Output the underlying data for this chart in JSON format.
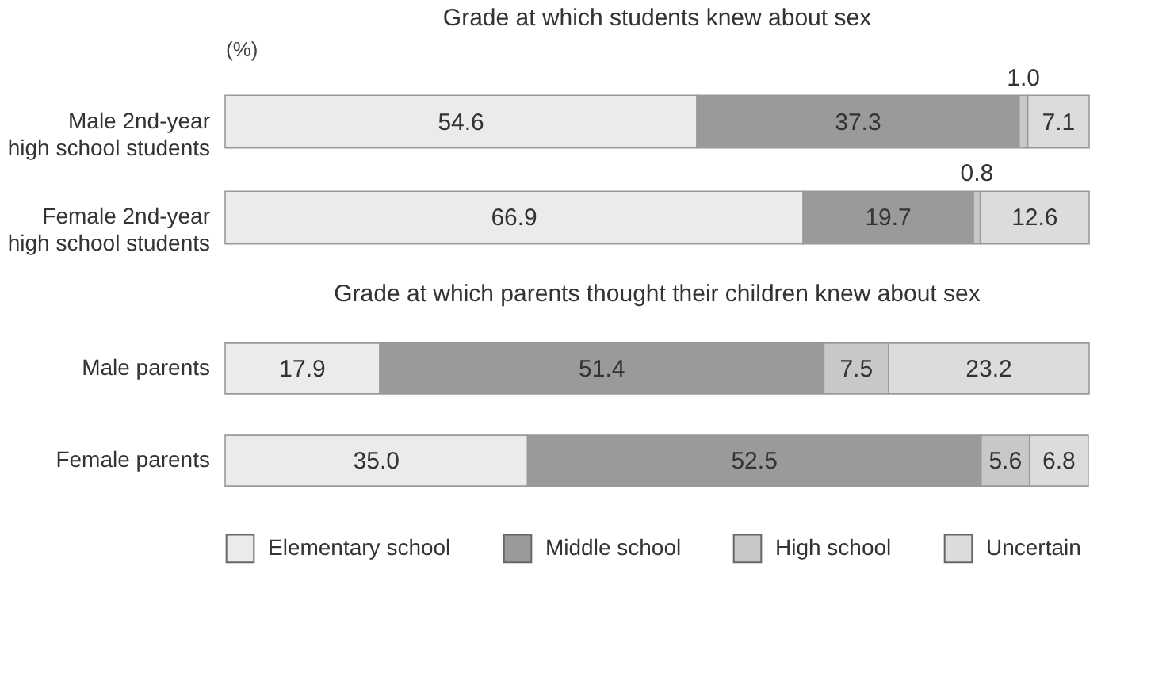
{
  "chart_data": [
    {
      "type": "bar",
      "orientation": "horizontal",
      "stacked": true,
      "title": "Grade at which students knew about sex",
      "xlabel": "(%)",
      "xlim": [
        0,
        100
      ],
      "legend": false,
      "categories": [
        "Male 2nd-year high school students",
        "Female 2nd-year high school students"
      ],
      "series": [
        {
          "color": "#ebebeb",
          "values": [
            54.6,
            66.9
          ],
          "value_labels": [
            "54.6",
            "66.9"
          ]
        },
        {
          "color": "#9a9a9a",
          "values": [
            37.3,
            19.7
          ],
          "value_labels": [
            "37.3",
            "19.7"
          ]
        },
        {
          "color": "#c8c8c8",
          "values": [
            1.0,
            0.8
          ],
          "value_labels": [
            "1.0",
            "0.8"
          ]
        },
        {
          "color": "#dcdcdc",
          "values": [
            7.1,
            12.6
          ],
          "value_labels": [
            "7.1",
            "12.6"
          ]
        }
      ]
    },
    {
      "type": "bar",
      "orientation": "horizontal",
      "stacked": true,
      "title": "Grade at which parents thought their children knew about sex",
      "xlim": [
        0,
        100
      ],
      "legend": "bottom",
      "categories": [
        "Male parents",
        "Female parents"
      ],
      "series": [
        {
          "name": "Elementary school",
          "color": "#ebebeb",
          "values": [
            17.9,
            35.0
          ],
          "value_labels": [
            "17.9",
            "35.0"
          ]
        },
        {
          "name": "Middle school",
          "color": "#9a9a9a",
          "values": [
            51.4,
            52.5
          ],
          "value_labels": [
            "51.4",
            "52.5"
          ]
        },
        {
          "name": "High school",
          "color": "#c8c8c8",
          "values": [
            7.5,
            5.6
          ],
          "value_labels": [
            "7.5",
            "5.6"
          ]
        },
        {
          "name": "Uncertain",
          "color": "#dcdcdc",
          "values": [
            23.2,
            6.8
          ],
          "value_labels": [
            "23.2",
            "6.8"
          ]
        }
      ]
    }
  ]
}
